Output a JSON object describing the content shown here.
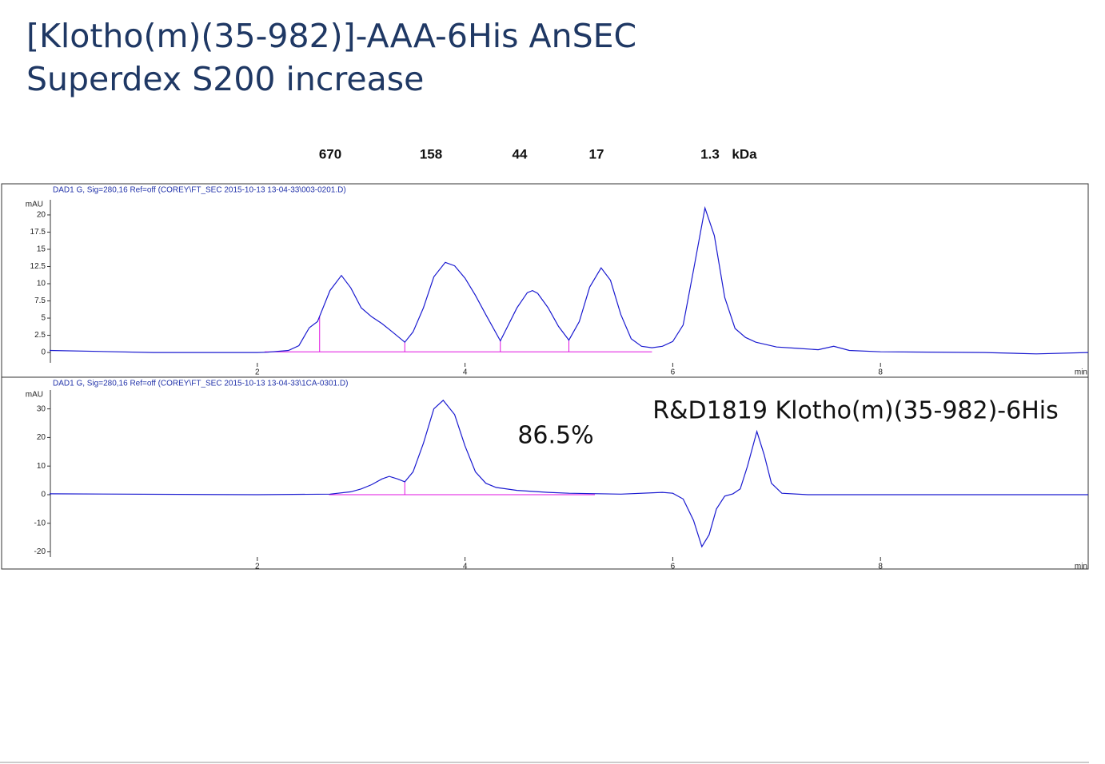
{
  "header": {
    "lines": [
      "[Klotho(m)(35-982)]-AAA-6His  AnSEC",
      "Superdex S200 increase"
    ]
  },
  "markers": [
    "670",
    "158",
    "44",
    "17",
    "1.3",
    "kDa"
  ],
  "chart_data": [
    {
      "type": "line",
      "title": "DAD1 G, Sig=280,16 Ref=off (COREY\\FT_SEC 2015-10-13 13-04-33\\003-0201.D)",
      "xlabel": "min",
      "ylabel": "mAU",
      "x": [
        0,
        1,
        2,
        2.1,
        2.3,
        2.4,
        2.5,
        2.58,
        2.7,
        2.81,
        2.9,
        3.0,
        3.1,
        3.2,
        3.3,
        3.42,
        3.5,
        3.6,
        3.7,
        3.81,
        3.9,
        4.0,
        4.1,
        4.2,
        4.34,
        4.4,
        4.5,
        4.6,
        4.65,
        4.7,
        4.8,
        4.9,
        5.0,
        5.1,
        5.2,
        5.31,
        5.4,
        5.5,
        5.6,
        5.7,
        5.8,
        5.9,
        6.0,
        6.1,
        6.2,
        6.31,
        6.4,
        6.5,
        6.6,
        6.7,
        6.8,
        7.0,
        7.2,
        7.4,
        7.55,
        7.7,
        8,
        9,
        9.5,
        10
      ],
      "series": [
        {
          "color": "#1a1ad0",
          "values": [
            0.3,
            0.0,
            0.0,
            0.05,
            0.3,
            1.0,
            3.6,
            4.5,
            9.0,
            11.2,
            9.4,
            6.5,
            5.2,
            4.2,
            3.0,
            1.5,
            3.0,
            6.5,
            11.0,
            13.1,
            12.6,
            10.8,
            8.3,
            5.5,
            1.7,
            3.5,
            6.5,
            8.7,
            9.0,
            8.6,
            6.5,
            3.8,
            1.8,
            4.5,
            9.5,
            12.3,
            10.5,
            5.5,
            2.0,
            0.9,
            0.7,
            0.9,
            1.6,
            4.0,
            12.0,
            21.0,
            17.0,
            8.0,
            3.5,
            2.2,
            1.5,
            0.8,
            0.6,
            0.4,
            0.9,
            0.3,
            0.1,
            0.0,
            -0.2,
            0.0
          ]
        }
      ],
      "baseline": {
        "color": "#e010e0",
        "x": [
          2.07,
          5.8
        ],
        "values": [
          0.1,
          0.1
        ],
        "drops": [
          2.6,
          3.42,
          4.34,
          5.0
        ]
      },
      "xlim": [
        0,
        10
      ],
      "ylim": [
        -1.5,
        22.2
      ],
      "xticks": [
        2,
        4,
        6,
        8
      ],
      "yticks": [
        0,
        2.5,
        5,
        7.5,
        10,
        12.5,
        15,
        17.5,
        20
      ],
      "grid": false
    },
    {
      "type": "line",
      "title": "DAD1 G, Sig=280,16 Ref=off (COREY\\FT_SEC 2015-10-13 13-04-33\\1CA-0301.D)",
      "xlabel": "min",
      "ylabel": "mAU",
      "annotations": [
        "86.5%",
        "R&D1819 Klotho(m)(35-982)-6His"
      ],
      "x": [
        0,
        2,
        2.7,
        2.9,
        3.0,
        3.1,
        3.2,
        3.27,
        3.35,
        3.42,
        3.5,
        3.6,
        3.7,
        3.79,
        3.9,
        4.0,
        4.1,
        4.2,
        4.3,
        4.5,
        4.8,
        5.0,
        5.5,
        5.9,
        6.0,
        6.1,
        6.2,
        6.28,
        6.35,
        6.42,
        6.5,
        6.58,
        6.65,
        6.72,
        6.81,
        6.88,
        6.95,
        7.05,
        7.3,
        8,
        10
      ],
      "series": [
        {
          "color": "#1a1ad0",
          "values": [
            0.3,
            0,
            0.2,
            1,
            2,
            3.5,
            5.5,
            6.4,
            5.5,
            4.5,
            8,
            18,
            30,
            33,
            28,
            17,
            8,
            4,
            2.5,
            1.5,
            0.8,
            0.5,
            0.2,
            0.8,
            0.5,
            -1.5,
            -9,
            -18.2,
            -14,
            -5,
            -0.5,
            0.3,
            2,
            10,
            22.1,
            14,
            4,
            0.5,
            0,
            0,
            0
          ]
        }
      ],
      "baseline": {
        "color": "#e010e0",
        "x": [
          2.69,
          5.25
        ],
        "values": [
          0,
          0
        ],
        "drops": [
          3.42
        ]
      },
      "xlim": [
        0,
        10
      ],
      "ylim": [
        -21.8,
        36.6
      ],
      "xticks": [
        2,
        4,
        6,
        8
      ],
      "yticks": [
        -20,
        -10,
        0,
        10,
        20,
        30
      ],
      "grid": false
    }
  ]
}
